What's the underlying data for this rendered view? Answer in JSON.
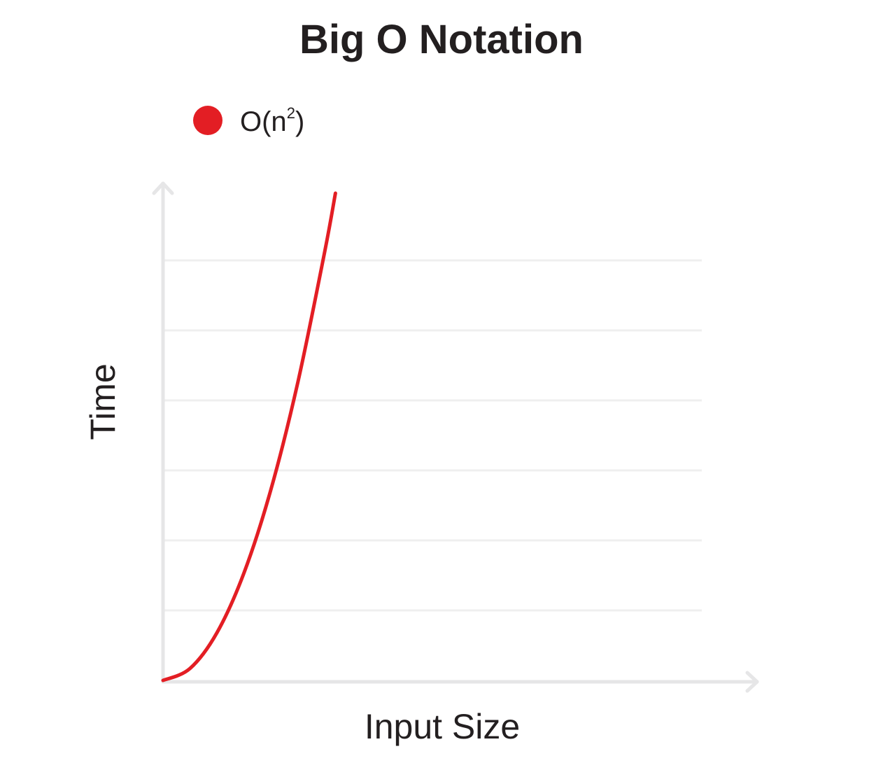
{
  "chart_data": {
    "type": "line",
    "title": "Big O Notation",
    "xlabel": "Input Size",
    "ylabel": "Time",
    "grid": true,
    "legend_position": "top-left",
    "xlim": [
      0,
      10
    ],
    "ylim": [
      0,
      7
    ],
    "series": [
      {
        "name": "O(n²)",
        "legend_base": "O(n",
        "legend_sup": "2",
        "legend_close": ")",
        "color": "#e31e24",
        "x": [
          0,
          0.5,
          1,
          1.5,
          2,
          2.5,
          3,
          3.2
        ],
        "y": [
          0,
          0.17,
          0.68,
          1.53,
          2.72,
          4.25,
          6.12,
          6.96
        ]
      }
    ]
  }
}
